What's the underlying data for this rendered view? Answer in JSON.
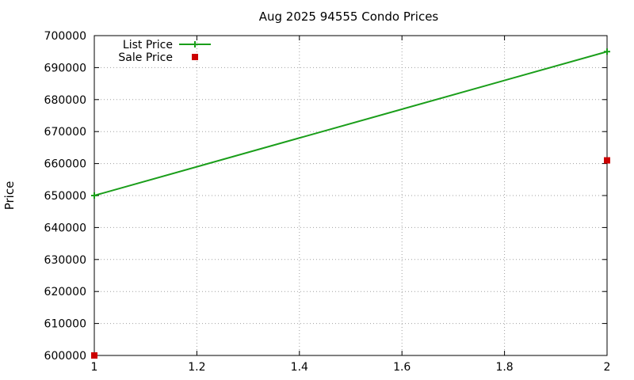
{
  "chart_data": {
    "type": "line",
    "title": "Aug 2025 94555 Condo Prices",
    "xlabel": "",
    "ylabel": "Price",
    "xlim": [
      1,
      2
    ],
    "ylim": [
      600000,
      700000
    ],
    "x_ticks": [
      "1",
      "1.2",
      "1.4",
      "1.6",
      "1.8",
      "2"
    ],
    "y_ticks": [
      "600000",
      "610000",
      "620000",
      "630000",
      "640000",
      "650000",
      "660000",
      "670000",
      "680000",
      "690000",
      "700000"
    ],
    "grid": true,
    "legend_position": "top-left",
    "series": [
      {
        "name": "List Price",
        "style": "linespoints",
        "marker": "plus",
        "color": "#1a9e1a",
        "points": [
          [
            1,
            650000
          ],
          [
            2,
            695000
          ]
        ]
      },
      {
        "name": "Sale Price",
        "style": "points",
        "marker": "square",
        "color": "#cc0000",
        "points": [
          [
            1,
            600000
          ],
          [
            2,
            661000
          ]
        ]
      }
    ]
  }
}
